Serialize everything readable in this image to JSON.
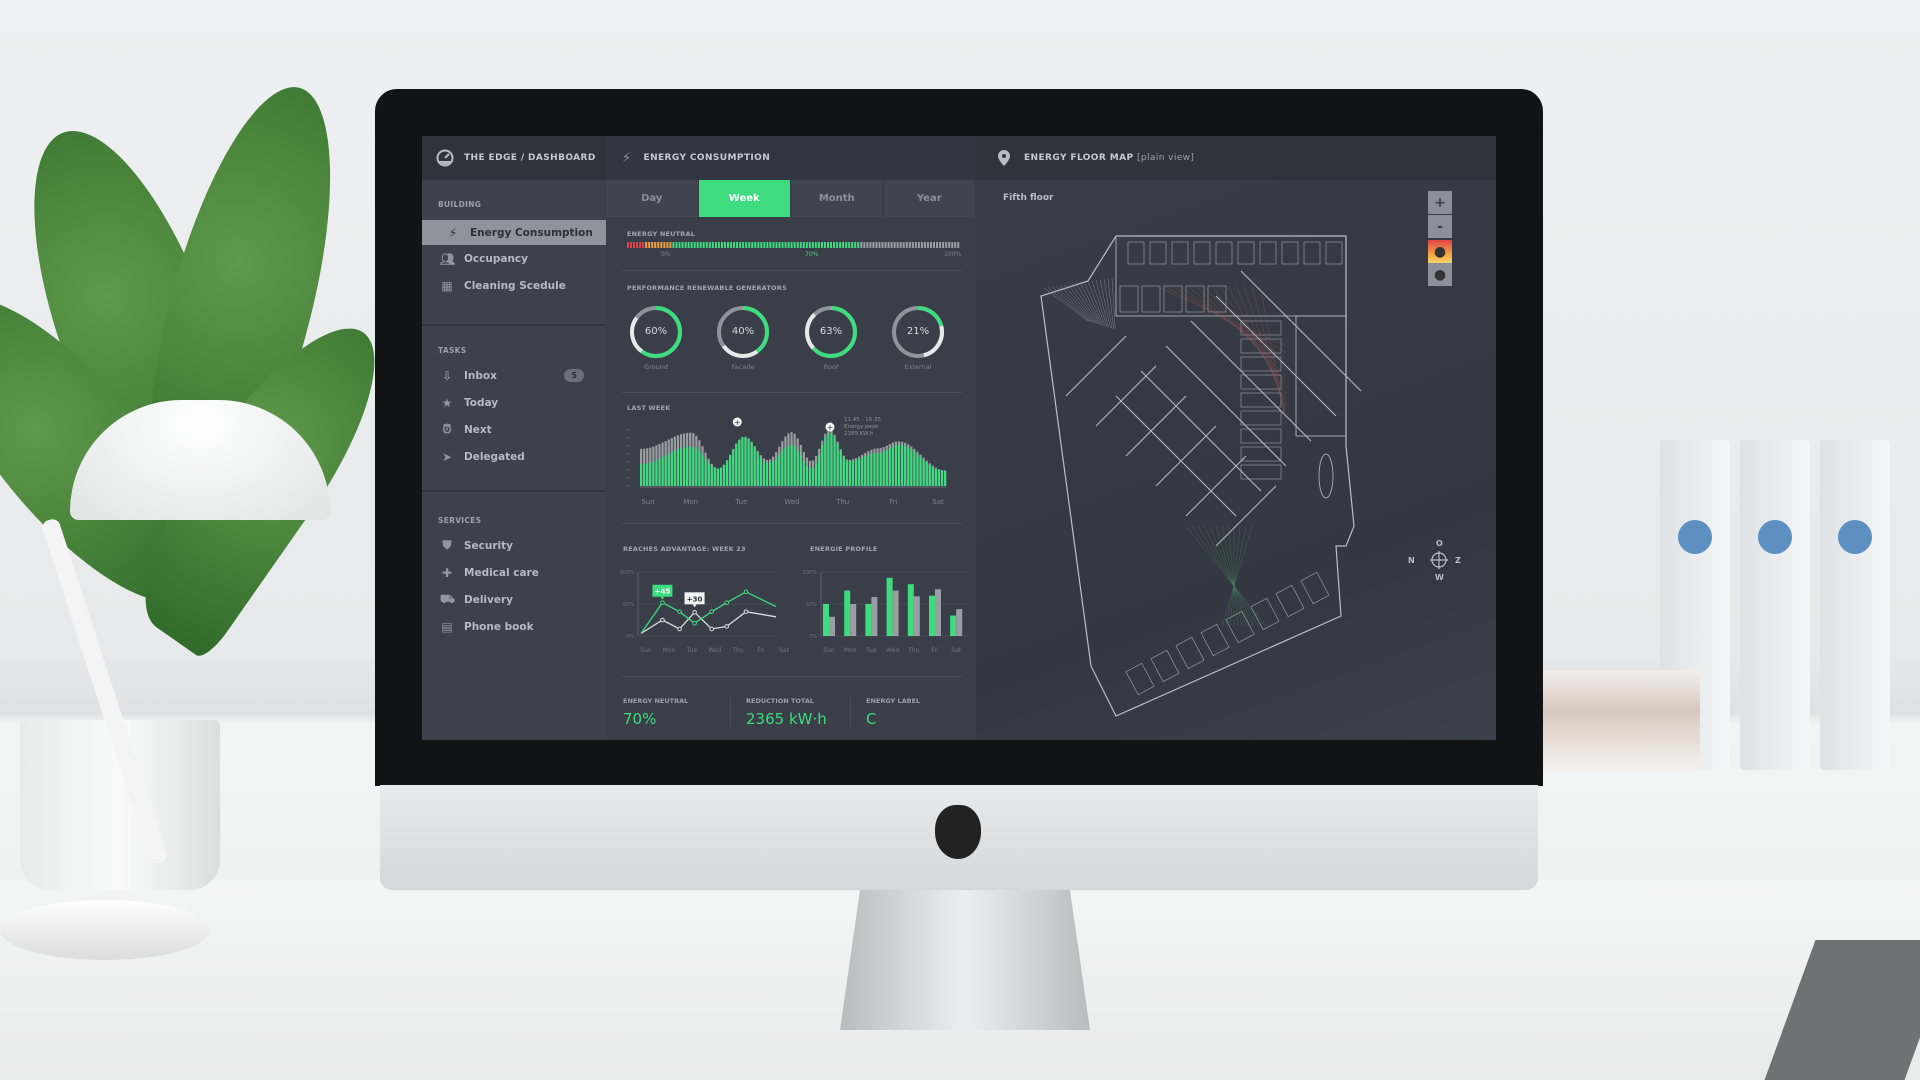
{
  "app": {
    "title": "THE EDGE / DASHBOARD",
    "logo_icon": "dashboard-gauge-icon"
  },
  "colors": {
    "accent": "#3ddc7f",
    "sidebar": "#3d414b",
    "panel": "#3a3e48",
    "gray_series": "#9a9da2"
  },
  "sidebar": {
    "building": {
      "label": "BUILDING",
      "items": [
        {
          "label": "Energy Consumption",
          "icon": "lightning-icon",
          "active": true
        },
        {
          "label": "Occupancy",
          "icon": "people-icon"
        },
        {
          "label": "Cleaning Scedule",
          "icon": "calendar-icon"
        }
      ]
    },
    "tasks": {
      "label": "TASKS",
      "items": [
        {
          "label": "Inbox",
          "icon": "inbox-icon",
          "badge": "5"
        },
        {
          "label": "Today",
          "icon": "star-icon"
        },
        {
          "label": "Next",
          "icon": "alarm-clock-icon"
        },
        {
          "label": "Delegated",
          "icon": "paper-plane-icon"
        }
      ]
    },
    "services": {
      "label": "SERVICES",
      "items": [
        {
          "label": "Security",
          "icon": "shield-icon"
        },
        {
          "label": "Medical care",
          "icon": "plus-icon"
        },
        {
          "label": "Delivery",
          "icon": "truck-icon"
        },
        {
          "label": "Phone book",
          "icon": "phone-book-icon"
        }
      ]
    }
  },
  "energy": {
    "title": "ENERGY CONSUMPTION",
    "tabs": [
      "Day",
      "Week",
      "Month",
      "Year"
    ],
    "active_tab": "Week",
    "neutral": {
      "label": "ENERGY NEUTRAL",
      "value_percent": 70,
      "ticks": [
        "0%",
        "70%",
        "100%"
      ]
    },
    "generators": {
      "label": "PERFORMANCE RENEWABLE GENERATORS",
      "items": [
        {
          "name": "Ground",
          "value": "60%",
          "percent": 60
        },
        {
          "name": "Facade",
          "value": "40%",
          "percent": 40
        },
        {
          "name": "Roof",
          "value": "63%",
          "percent": 63
        },
        {
          "name": "External",
          "value": "21%",
          "percent": 21
        }
      ]
    },
    "stats": [
      {
        "label": "ENERGY NEUTRAL",
        "value": "70%"
      },
      {
        "label": "REDUCTION TOTAL",
        "value": "2365 kW·h"
      },
      {
        "label": "ENERGY LABEL",
        "value": "C"
      }
    ]
  },
  "chart_data": [
    {
      "type": "area",
      "title": "LAST WEEK",
      "categories": [
        "Sun",
        "Mon",
        "Tue",
        "Wed",
        "Thu",
        "Fri",
        "Sat"
      ],
      "x": [
        0,
        0.99,
        1.52,
        2.04,
        2.5,
        2.97,
        3.36,
        3.72,
        4.09,
        4.68,
        5.08,
        6
      ],
      "series": [
        {
          "values": [
            64,
            92,
            30,
            85,
            45,
            93,
            43,
            97,
            45,
            65,
            77,
            27
          ]
        },
        {
          "values": [
            38,
            68,
            30,
            85,
            40,
            71,
            30,
            92,
            43,
            57,
            71,
            26
          ]
        }
      ],
      "annotation": {
        "lines": [
          "11.45 - 16.35",
          "Energy peak",
          "2389 KW.h"
        ]
      }
    },
    {
      "type": "line",
      "title": "REACHES ADVANTAGE: WEEK 23",
      "categories": [
        "Sun",
        "Mon",
        "Tue",
        "Wed",
        "Thu",
        "Fri",
        "Sat"
      ],
      "yticks": [
        "100%",
        "50%",
        "0%"
      ],
      "ylim": [
        0,
        100
      ],
      "x": [
        0,
        1,
        1.8,
        2.5,
        3.3,
        4,
        4.9,
        6.3
      ],
      "series": [
        {
          "values": [
            4,
            52,
            38,
            20,
            38,
            52,
            69,
            46
          ]
        },
        {
          "values": [
            4,
            25,
            11,
            37,
            11,
            15,
            38,
            30
          ]
        }
      ],
      "labels": [
        "+45",
        "+30"
      ]
    },
    {
      "type": "bar",
      "title": "ENERGIE PROFILE",
      "categories": [
        "Sun",
        "Mon",
        "Tue",
        "Wed",
        "Thu",
        "Fri",
        "Sat"
      ],
      "yticks": [
        "100%",
        "50%",
        "0%"
      ],
      "ylim": [
        0,
        100
      ],
      "series": [
        {
          "values": [
            50,
            71,
            50,
            91,
            81,
            63,
            32
          ]
        },
        {
          "values": [
            30,
            50,
            61,
            71,
            62,
            73,
            42
          ]
        }
      ]
    }
  ],
  "map": {
    "title": "ENERGY FLOOR MAP",
    "subtitle": "[plain view]",
    "floor": "Fifth floor",
    "zoom_in": "+",
    "zoom_out": "-",
    "compass": {
      "n": "N",
      "o": "O",
      "z": "Z",
      "w": "W"
    }
  }
}
